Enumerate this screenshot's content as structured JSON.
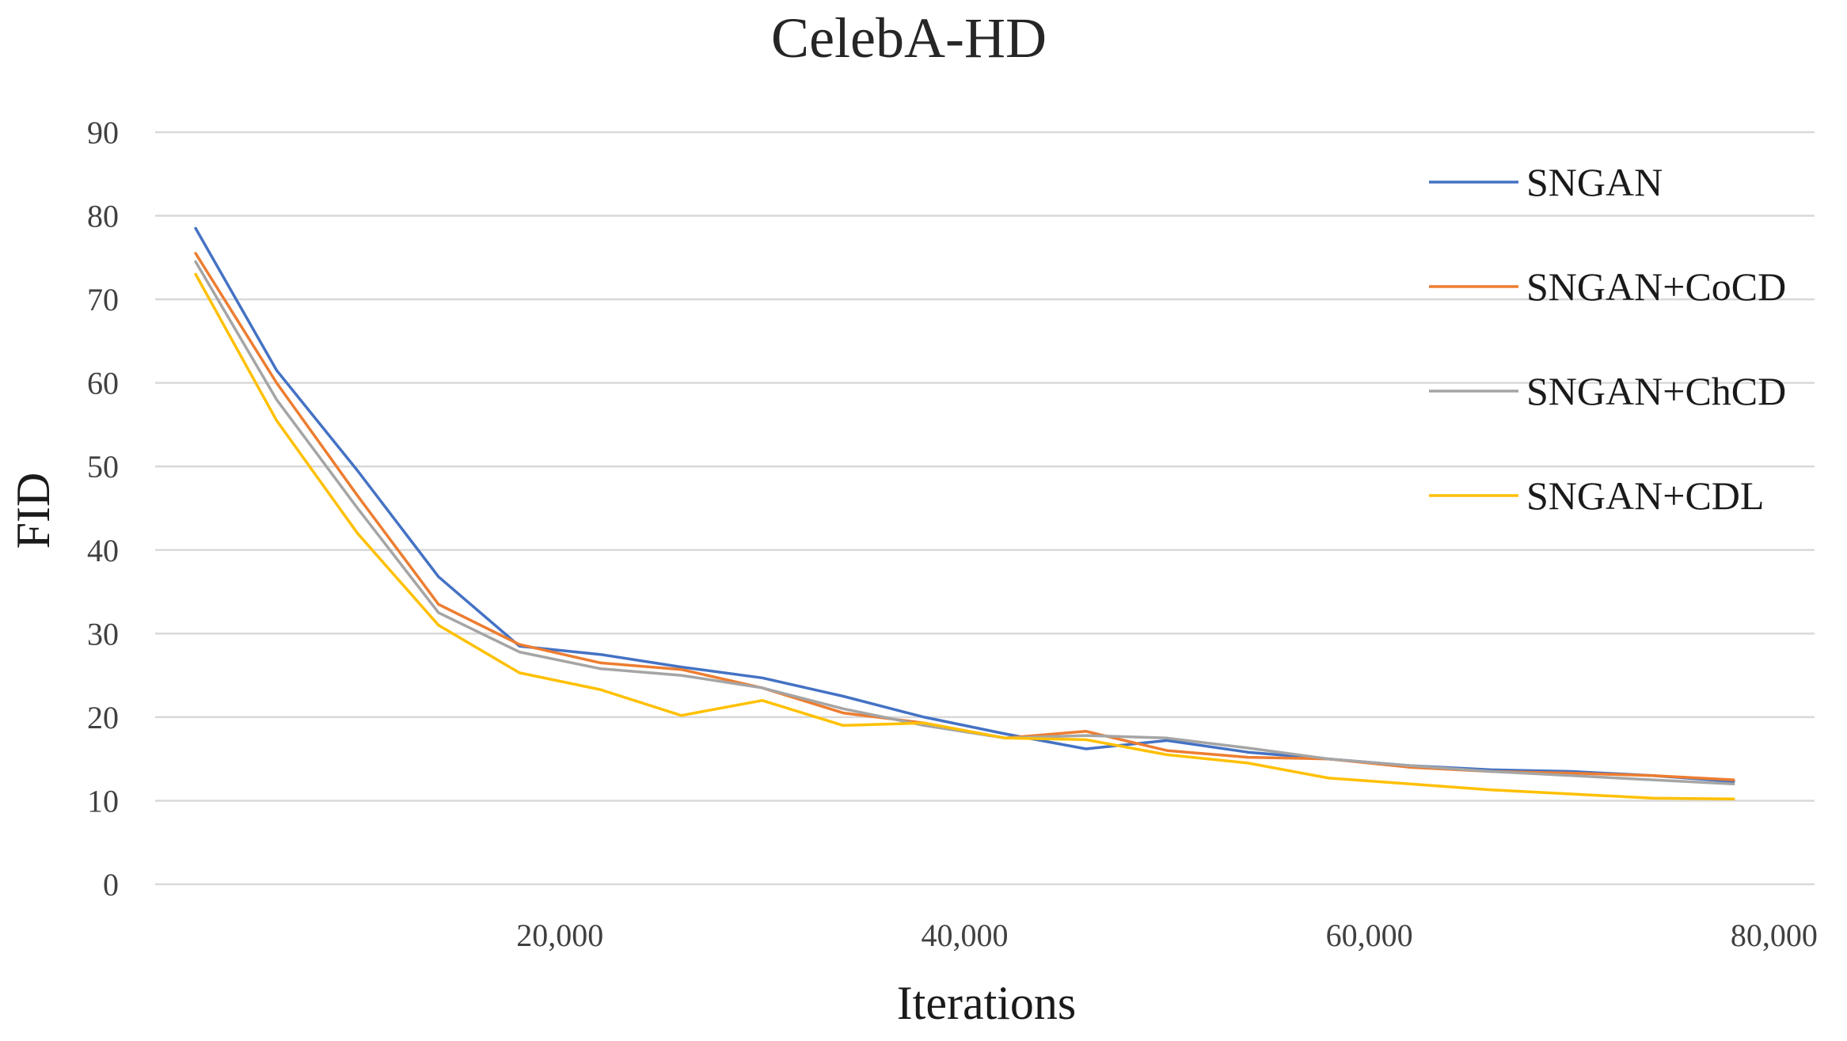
{
  "chart_data": {
    "type": "line",
    "title": "CelebA-HD",
    "xlabel": "Iterations",
    "ylabel": "FID",
    "xlim": [
      0,
      82000
    ],
    "ylim": [
      0,
      90
    ],
    "yticks": [
      0,
      10,
      20,
      30,
      40,
      50,
      60,
      70,
      80,
      90
    ],
    "xticks": [
      20000,
      40000,
      60000,
      80000
    ],
    "xtick_labels": [
      "20,000",
      "40,000",
      "60,000",
      "80,000"
    ],
    "grid": true,
    "legend_position": "right",
    "x": [
      2000,
      6000,
      10000,
      14000,
      18000,
      22000,
      26000,
      30000,
      34000,
      38000,
      42000,
      46000,
      50000,
      54000,
      58000,
      62000,
      66000,
      70000,
      74000,
      78000
    ],
    "series": [
      {
        "name": "SNGAN",
        "color": "#4472C4",
        "values": [
          78.5,
          61.5,
          49.5,
          36.8,
          28.5,
          27.5,
          26.0,
          24.7,
          22.5,
          20.0,
          18.0,
          16.2,
          17.2,
          15.8,
          15.0,
          14.2,
          13.7,
          13.5,
          13.0,
          12.3
        ]
      },
      {
        "name": "SNGAN+CoCD",
        "color": "#ED7D31",
        "values": [
          75.5,
          60.0,
          46.5,
          33.5,
          28.7,
          26.5,
          25.7,
          23.5,
          20.5,
          19.3,
          17.5,
          18.3,
          16.0,
          15.2,
          15.0,
          14.0,
          13.5,
          13.3,
          13.0,
          12.5
        ]
      },
      {
        "name": "SNGAN+ChCD",
        "color": "#A5A5A5",
        "values": [
          74.5,
          58.0,
          45.0,
          32.5,
          27.8,
          25.8,
          25.0,
          23.5,
          21.0,
          19.0,
          17.5,
          17.8,
          17.5,
          16.3,
          15.0,
          14.2,
          13.5,
          13.0,
          12.5,
          12.0
        ]
      },
      {
        "name": "SNGAN+CDL",
        "color": "#FFC000",
        "values": [
          73.0,
          55.5,
          42.0,
          31.0,
          25.3,
          23.3,
          20.2,
          22.0,
          19.0,
          19.3,
          17.5,
          17.3,
          15.5,
          14.5,
          12.7,
          12.0,
          11.3,
          10.8,
          10.3,
          10.2
        ]
      }
    ]
  }
}
